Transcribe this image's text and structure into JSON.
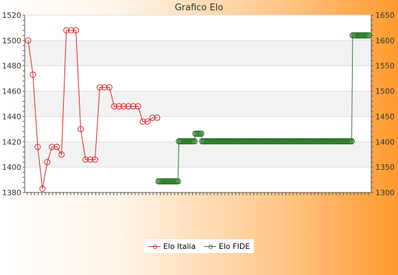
{
  "title": "Grafico Elo",
  "legend": {
    "italia": "Elo Italia",
    "fide": "Elo FIDE"
  },
  "colors": {
    "italia": "#dd2222",
    "fide": "#2d7a2d",
    "band": "#f2f2f2"
  },
  "chart_data": {
    "type": "line",
    "title": "Grafico Elo",
    "y_left": {
      "range": [
        1380,
        1520
      ],
      "ticks": [
        1380,
        1400,
        1420,
        1440,
        1460,
        1480,
        1500,
        1520
      ]
    },
    "y_right": {
      "range": [
        1300,
        1650
      ],
      "ticks": [
        1300,
        1350,
        1400,
        1450,
        1500,
        1550,
        1600,
        1650
      ]
    },
    "grid": true,
    "legend_position": "bottom",
    "series": [
      {
        "name": "Elo Italia",
        "axis": "left",
        "color": "#dd2222",
        "values": [
          1500,
          1473,
          1416,
          1383,
          1404,
          1416,
          1416,
          1410,
          1508,
          1508,
          1508,
          1430,
          1406,
          1406,
          1406,
          1463,
          1463,
          1463,
          1448,
          1448,
          1448,
          1448,
          1448,
          1448,
          1436,
          1436,
          1439,
          1439
        ]
      },
      {
        "name": "Elo FIDE",
        "axis": "right",
        "color": "#2d7a2d",
        "values": [
          1322,
          1322,
          1322,
          1322,
          1322,
          1322,
          1322,
          1322,
          1322,
          1322,
          1322,
          1322,
          1322,
          1322,
          1322,
          1322,
          1322,
          1322,
          1322,
          1322,
          1322,
          1401,
          1401,
          1401,
          1401,
          1401,
          1401,
          1401,
          1401,
          1401,
          1401,
          1401,
          1401,
          1401,
          1401,
          1401,
          1401,
          1401,
          1416,
          1416,
          1416,
          1416,
          1416,
          1416,
          1416,
          1401,
          1401,
          1401,
          1401,
          1401,
          1401,
          1401,
          1401,
          1401,
          1401,
          1401,
          1401,
          1401,
          1401,
          1401,
          1401,
          1401,
          1401,
          1401,
          1401,
          1401,
          1401,
          1401,
          1401,
          1401,
          1401,
          1401,
          1401,
          1401,
          1401,
          1401,
          1401,
          1401,
          1401,
          1401,
          1401,
          1401,
          1401,
          1401,
          1401,
          1401,
          1401,
          1401,
          1401,
          1401,
          1401,
          1401,
          1401,
          1401,
          1401,
          1401,
          1401,
          1401,
          1401,
          1401,
          1401,
          1401,
          1401,
          1401,
          1401,
          1401,
          1401,
          1401,
          1401,
          1401,
          1401,
          1401,
          1401,
          1401,
          1401,
          1401,
          1401,
          1401,
          1401,
          1401,
          1401,
          1401,
          1401,
          1401,
          1401,
          1401,
          1401,
          1401,
          1401,
          1401,
          1401,
          1401,
          1401,
          1401,
          1401,
          1401,
          1401,
          1401,
          1401,
          1401,
          1401,
          1401,
          1401,
          1401,
          1401,
          1401,
          1401,
          1401,
          1401,
          1401,
          1401,
          1401,
          1401,
          1401,
          1401,
          1401,
          1401,
          1401,
          1401,
          1401,
          1401,
          1401,
          1401,
          1401,
          1401,
          1401,
          1401,
          1401,
          1401,
          1401,
          1401,
          1401,
          1401,
          1401,
          1401,
          1401,
          1401,
          1401,
          1401,
          1401,
          1401,
          1401,
          1401,
          1401,
          1401,
          1401,
          1401,
          1401,
          1401,
          1401,
          1401,
          1401,
          1401,
          1401,
          1401,
          1401,
          1401,
          1401,
          1401,
          1401,
          1610,
          1610,
          1610,
          1610,
          1610,
          1610,
          1610,
          1610,
          1610,
          1610,
          1610,
          1610,
          1610,
          1610,
          1610,
          1610,
          1610,
          1610
        ]
      }
    ]
  }
}
